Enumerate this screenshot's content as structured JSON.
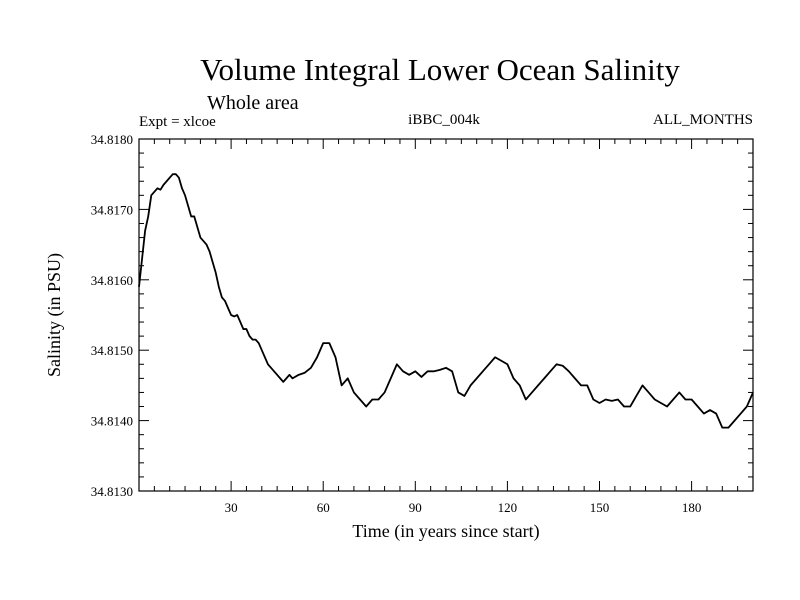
{
  "chart_data": {
    "type": "line",
    "title": "Volume Integral Lower Ocean Salinity",
    "subtitle": "Whole area",
    "header_left": "Expt = xlcoe",
    "header_center": "iBBC_004k",
    "header_right": "ALL_MONTHS",
    "xlabel": "Time (in years since start)",
    "ylabel": "Salinity (in PSU)",
    "xlim": [
      0,
      200
    ],
    "ylim": [
      34.813,
      34.818
    ],
    "x_major_ticks": [
      30,
      60,
      90,
      120,
      150,
      180
    ],
    "x_tick_labels": [
      "30",
      "60",
      "90",
      "120",
      "150",
      "180"
    ],
    "y_major_ticks": [
      34.813,
      34.814,
      34.815,
      34.816,
      34.817,
      34.818
    ],
    "y_tick_labels": [
      "34.8130",
      "34.8140",
      "34.8150",
      "34.8160",
      "34.8170",
      "34.8180"
    ],
    "grid": false,
    "series": [
      {
        "name": "Salinity",
        "color": "#000000",
        "x": [
          0,
          1,
          2,
          3,
          4,
          5,
          6,
          7,
          8,
          9,
          10,
          11,
          12,
          13,
          14,
          15,
          16,
          17,
          18,
          19,
          20,
          21,
          22,
          23,
          24,
          25,
          26,
          27,
          28,
          29,
          30,
          31,
          32,
          33,
          34,
          35,
          36,
          37,
          38,
          39,
          40,
          41,
          42,
          43,
          44,
          45,
          46,
          47,
          48,
          49,
          50,
          52,
          54,
          56,
          58,
          60,
          62,
          64,
          66,
          68,
          70,
          72,
          74,
          76,
          78,
          80,
          82,
          84,
          86,
          88,
          90,
          92,
          94,
          96,
          98,
          100,
          102,
          104,
          106,
          108,
          110,
          112,
          114,
          116,
          118,
          120,
          122,
          124,
          126,
          128,
          130,
          132,
          134,
          136,
          138,
          140,
          142,
          144,
          146,
          148,
          150,
          152,
          154,
          156,
          158,
          160,
          162,
          164,
          166,
          168,
          170,
          172,
          174,
          176,
          178,
          180,
          182,
          184,
          186,
          188,
          190,
          192,
          194,
          196,
          198,
          200
        ],
        "values": [
          34.8159,
          34.8163,
          34.8167,
          34.8169,
          34.8172,
          34.81725,
          34.8173,
          34.81728,
          34.81735,
          34.8174,
          34.81745,
          34.8175,
          34.8175,
          34.81745,
          34.8173,
          34.8172,
          34.81705,
          34.8169,
          34.8169,
          34.81675,
          34.8166,
          34.81655,
          34.8165,
          34.8164,
          34.81625,
          34.8161,
          34.8159,
          34.81575,
          34.8157,
          34.8156,
          34.8155,
          34.81548,
          34.8155,
          34.8154,
          34.8153,
          34.8153,
          34.8152,
          34.81515,
          34.81515,
          34.8151,
          34.815,
          34.8149,
          34.8148,
          34.81475,
          34.8147,
          34.81465,
          34.8146,
          34.81455,
          34.8146,
          34.81465,
          34.8146,
          34.81465,
          34.81468,
          34.81475,
          34.8149,
          34.8151,
          34.8151,
          34.8149,
          34.8145,
          34.8146,
          34.8144,
          34.8143,
          34.8142,
          34.8143,
          34.8143,
          34.8144,
          34.8146,
          34.8148,
          34.8147,
          34.81465,
          34.8147,
          34.81462,
          34.8147,
          34.8147,
          34.81472,
          34.81475,
          34.8147,
          34.8144,
          34.81435,
          34.8145,
          34.8146,
          34.8147,
          34.8148,
          34.8149,
          34.81485,
          34.8148,
          34.8146,
          34.8145,
          34.8143,
          34.8144,
          34.8145,
          34.8146,
          34.8147,
          34.8148,
          34.81478,
          34.8147,
          34.8146,
          34.8145,
          34.8145,
          34.8143,
          34.81425,
          34.8143,
          34.81428,
          34.8143,
          34.8142,
          34.8142,
          34.81435,
          34.8145,
          34.8144,
          34.8143,
          34.81425,
          34.8142,
          34.8143,
          34.8144,
          34.8143,
          34.8143,
          34.8142,
          34.8141,
          34.81415,
          34.8141,
          34.8139,
          34.8139,
          34.814,
          34.8141,
          34.8142,
          34.8144
        ]
      }
    ]
  }
}
